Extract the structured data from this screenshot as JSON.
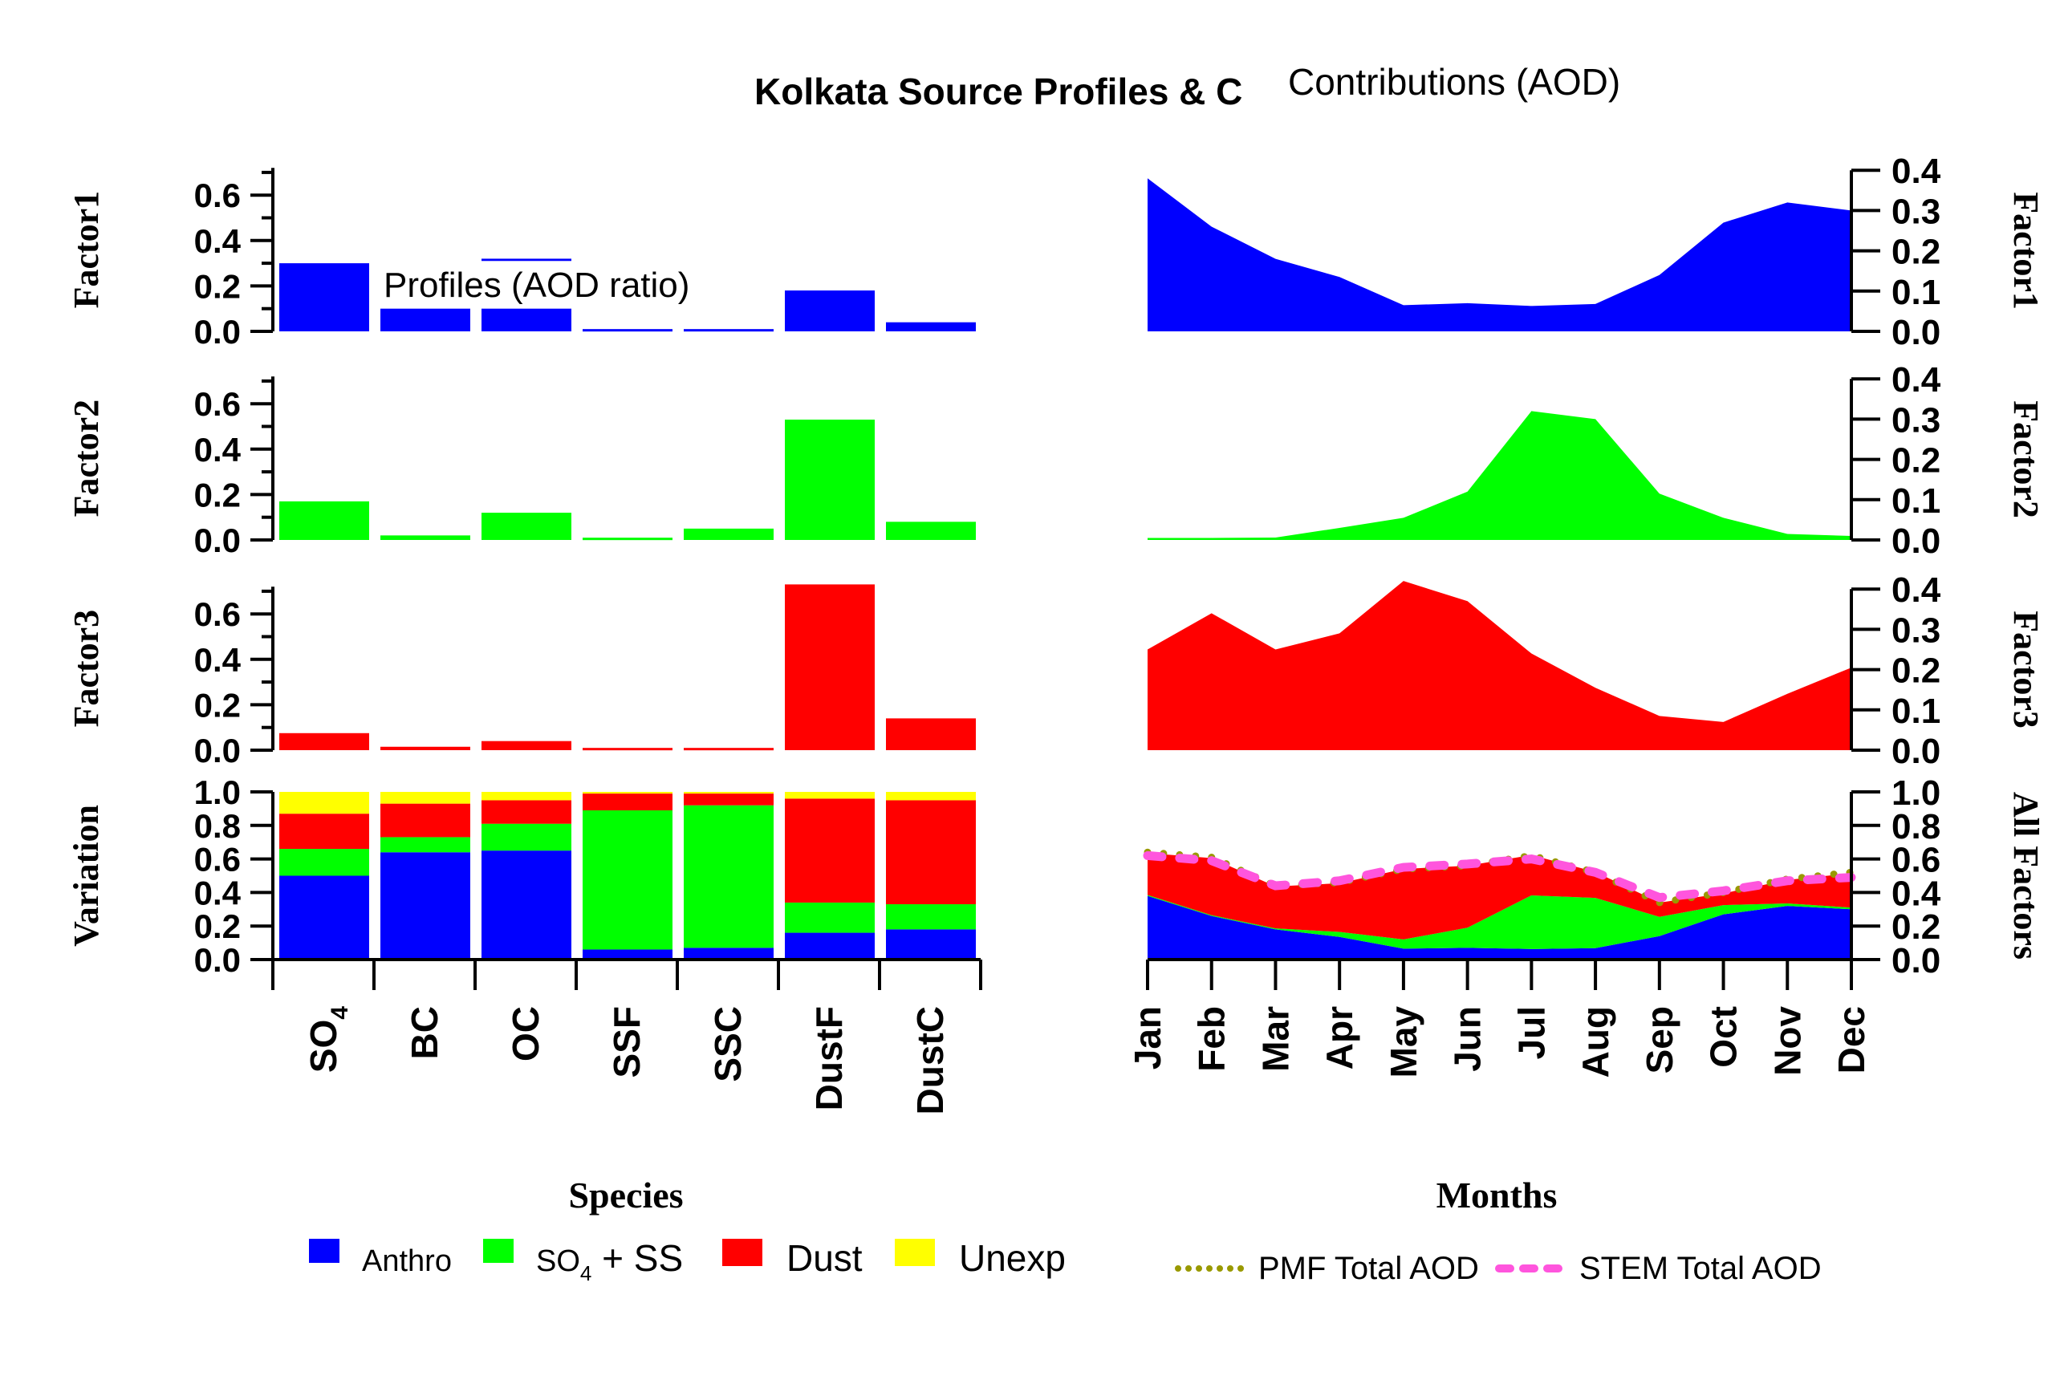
{
  "title_left": "Kolkata Source Profiles & C",
  "title_right": "Contributions (AOD)",
  "profiles_label": "Profiles (AOD ratio)",
  "colors": {
    "anthro": "#0000ff",
    "so4ss": "#00ff00",
    "dust": "#ff0000",
    "unexp": "#ffff00",
    "pmf": "#999900",
    "stem": "#ff55dd"
  },
  "chart_data": [
    {
      "type": "bar",
      "panel": "Factor1 profile",
      "ylabel": "Factor1",
      "categories": [
        "SO4",
        "BC",
        "OC",
        "SSF",
        "SSC",
        "DustF",
        "DustC"
      ],
      "values": [
        0.3,
        0.1,
        0.32,
        0.01,
        0.01,
        0.18,
        0.04
      ],
      "ylim": [
        0,
        0.72
      ],
      "yticks": [
        "0.0",
        "0.2",
        "0.4",
        "0.6"
      ]
    },
    {
      "type": "bar",
      "panel": "Factor2 profile",
      "ylabel": "Factor2",
      "categories": [
        "SO4",
        "BC",
        "OC",
        "SSF",
        "SSC",
        "DustF",
        "DustC"
      ],
      "values": [
        0.17,
        0.02,
        0.12,
        0.01,
        0.05,
        0.53,
        0.08
      ],
      "ylim": [
        0,
        0.72
      ],
      "yticks": [
        "0.0",
        "0.2",
        "0.4",
        "0.6"
      ]
    },
    {
      "type": "bar",
      "panel": "Factor3 profile",
      "ylabel": "Factor3",
      "categories": [
        "SO4",
        "BC",
        "OC",
        "SSF",
        "SSC",
        "DustF",
        "DustC"
      ],
      "values": [
        0.075,
        0.015,
        0.04,
        0.01,
        0.01,
        0.73,
        0.14
      ],
      "ylim": [
        0,
        0.72
      ],
      "yticks": [
        "0.0",
        "0.2",
        "0.4",
        "0.6"
      ]
    },
    {
      "type": "bar",
      "stacked": true,
      "panel": "Variation",
      "ylabel": "Variation",
      "xlabel": "Species",
      "categories": [
        "SO4",
        "BC",
        "OC",
        "SSF",
        "SSC",
        "DustF",
        "DustC"
      ],
      "category_labels": [
        {
          "main": "SO",
          "sub": "4"
        },
        {
          "main": "BC",
          "sub": ""
        },
        {
          "main": "OC",
          "sub": ""
        },
        {
          "main": "SSF",
          "sub": ""
        },
        {
          "main": "SSC",
          "sub": ""
        },
        {
          "main": "DustF",
          "sub": ""
        },
        {
          "main": "DustC",
          "sub": ""
        }
      ],
      "series": [
        {
          "name": "Anthro",
          "color_key": "anthro",
          "values": [
            0.5,
            0.64,
            0.65,
            0.06,
            0.07,
            0.16,
            0.18
          ]
        },
        {
          "name": "SO4 + SS",
          "color_key": "so4ss",
          "values": [
            0.16,
            0.09,
            0.16,
            0.83,
            0.85,
            0.18,
            0.15
          ]
        },
        {
          "name": "Dust",
          "color_key": "dust",
          "values": [
            0.21,
            0.2,
            0.14,
            0.1,
            0.07,
            0.62,
            0.62
          ]
        },
        {
          "name": "Unexp",
          "color_key": "unexp",
          "values": [
            0.13,
            0.07,
            0.05,
            0.01,
            0.01,
            0.04,
            0.05
          ]
        }
      ],
      "ylim": [
        0,
        1.0
      ],
      "yticks": [
        "0.0",
        "0.2",
        "0.4",
        "0.6",
        "0.8",
        "1.0"
      ]
    },
    {
      "type": "area",
      "panel": "Factor1 contribution",
      "ylabel": "Factor1",
      "x": [
        "Jan",
        "Feb",
        "Mar",
        "Apr",
        "May",
        "Jun",
        "Jul",
        "Aug",
        "Sep",
        "Oct",
        "Nov",
        "Dec"
      ],
      "values": [
        0.38,
        0.26,
        0.18,
        0.135,
        0.065,
        0.07,
        0.063,
        0.068,
        0.14,
        0.27,
        0.32,
        0.3
      ],
      "ylim": [
        0,
        0.4
      ],
      "yticks": [
        "0.0",
        "0.1",
        "0.2",
        "0.3",
        "0.4"
      ]
    },
    {
      "type": "area",
      "panel": "Factor2 contribution",
      "ylabel": "Factor2",
      "x": [
        "Jan",
        "Feb",
        "Mar",
        "Apr",
        "May",
        "Jun",
        "Jul",
        "Aug",
        "Sep",
        "Oct",
        "Nov",
        "Dec"
      ],
      "values": [
        0.005,
        0.005,
        0.006,
        0.03,
        0.055,
        0.12,
        0.32,
        0.3,
        0.115,
        0.055,
        0.015,
        0.01
      ],
      "ylim": [
        0,
        0.4
      ],
      "yticks": [
        "0.0",
        "0.1",
        "0.2",
        "0.3",
        "0.4"
      ]
    },
    {
      "type": "area",
      "panel": "Factor3 contribution",
      "ylabel": "Factor3",
      "x": [
        "Jan",
        "Feb",
        "Mar",
        "Apr",
        "May",
        "Jun",
        "Jul",
        "Aug",
        "Sep",
        "Oct",
        "Nov",
        "Dec"
      ],
      "values": [
        0.25,
        0.34,
        0.25,
        0.29,
        0.42,
        0.37,
        0.24,
        0.155,
        0.085,
        0.07,
        0.14,
        0.205
      ],
      "ylim": [
        0,
        0.4
      ],
      "yticks": [
        "0.0",
        "0.1",
        "0.2",
        "0.3",
        "0.4"
      ]
    },
    {
      "type": "area",
      "stacked": true,
      "panel": "All Factors",
      "ylabel": "All Factors",
      "xlabel": "Months",
      "x": [
        "Jan",
        "Feb",
        "Mar",
        "Apr",
        "May",
        "Jun",
        "Jul",
        "Aug",
        "Sep",
        "Oct",
        "Nov",
        "Dec"
      ],
      "series": [
        {
          "name": "Factor1",
          "color_key": "anthro",
          "values": [
            0.38,
            0.26,
            0.18,
            0.135,
            0.065,
            0.07,
            0.063,
            0.068,
            0.14,
            0.27,
            0.32,
            0.3
          ]
        },
        {
          "name": "Factor2",
          "color_key": "so4ss",
          "values": [
            0.005,
            0.005,
            0.006,
            0.03,
            0.055,
            0.12,
            0.32,
            0.3,
            0.115,
            0.055,
            0.015,
            0.01
          ]
        },
        {
          "name": "Factor3",
          "color_key": "dust",
          "values": [
            0.25,
            0.34,
            0.25,
            0.29,
            0.42,
            0.37,
            0.24,
            0.155,
            0.085,
            0.07,
            0.14,
            0.205
          ]
        }
      ],
      "lines": [
        {
          "name": "PMF Total AOD",
          "color_key": "pmf",
          "style": "dotted",
          "values": [
            0.64,
            0.61,
            0.44,
            0.46,
            0.54,
            0.56,
            0.62,
            0.52,
            0.34,
            0.4,
            0.48,
            0.52
          ]
        },
        {
          "name": "STEM Total AOD",
          "color_key": "stem",
          "style": "dashed",
          "values": [
            0.62,
            0.59,
            0.44,
            0.47,
            0.55,
            0.57,
            0.6,
            0.52,
            0.37,
            0.41,
            0.47,
            0.49
          ]
        }
      ],
      "ylim": [
        0,
        1.0
      ],
      "yticks": [
        "0.0",
        "0.2",
        "0.4",
        "0.6",
        "0.8",
        "1.0"
      ]
    }
  ],
  "legend_left": [
    {
      "label": "Anthro",
      "sub": "",
      "tail": "",
      "color_key": "anthro"
    },
    {
      "label": "SO",
      "sub": "4",
      "tail": " + SS",
      "color_key": "so4ss"
    },
    {
      "label": "Dust",
      "sub": "",
      "tail": "",
      "color_key": "dust"
    },
    {
      "label": "Unexp",
      "sub": "",
      "tail": "",
      "color_key": "unexp"
    }
  ],
  "legend_right": [
    {
      "label": "PMF Total AOD",
      "color_key": "pmf",
      "style": "dotted"
    },
    {
      "label": "STEM Total AOD",
      "color_key": "stem",
      "style": "dashed"
    }
  ]
}
